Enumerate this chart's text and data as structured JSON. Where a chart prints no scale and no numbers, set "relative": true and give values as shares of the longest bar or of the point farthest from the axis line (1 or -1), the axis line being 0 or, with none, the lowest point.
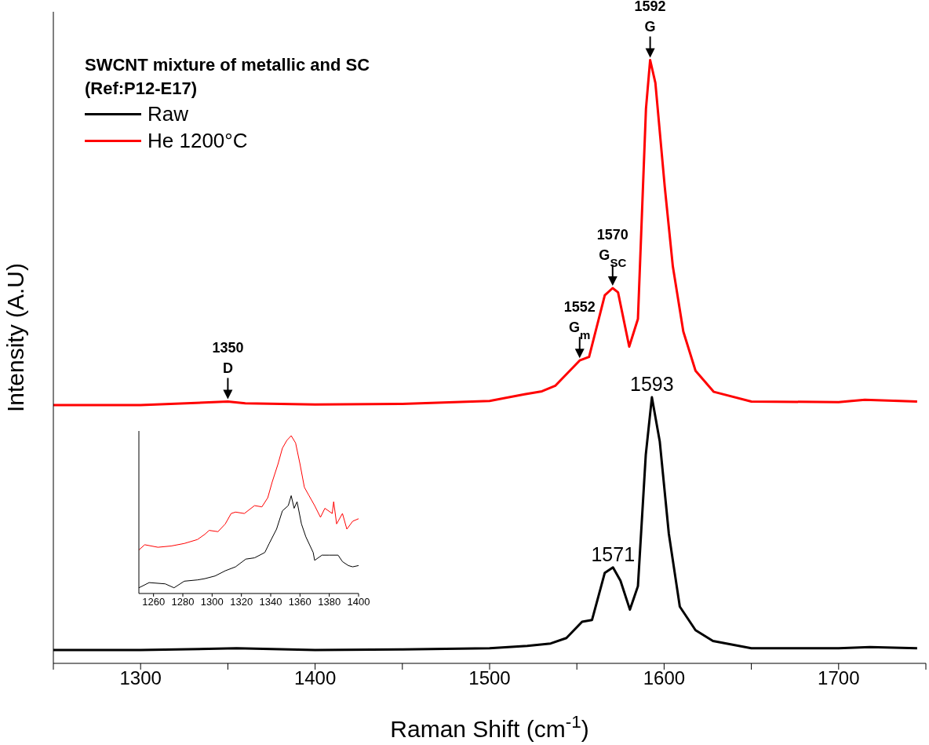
{
  "chart_data": [
    {
      "type": "line",
      "xlabel": "Raman Shift (cm$^{-1}$)",
      "ylabel": "Intensity (A.U)",
      "legend_title": "SWCNT mixture of metallic and SC (Ref:P12-E17)",
      "legend": "top left",
      "relative": true,
      "xlim": [
        1250,
        1750
      ],
      "xticks": [
        {
          "value": 1250,
          "label": null
        },
        1300,
        {
          "value": 1350,
          "label": null
        },
        1400,
        {
          "value": 1450,
          "label": null
        },
        1500,
        {
          "value": 1550,
          "label": null
        },
        1600,
        {
          "value": 1650,
          "label": null
        },
        1700,
        {
          "value": 1750,
          "label": null
        }
      ],
      "series": [
        {
          "name": "Raw",
          "color": "#000000",
          "x": [
            1250,
            1300,
            1355,
            1400,
            1450,
            1500,
            1521.6,
            1535,
            1544,
            1553,
            1558.7,
            1566,
            1570.7,
            1575,
            1580.4,
            1585,
            1589.5,
            1593,
            1597.5,
            1602.7,
            1609,
            1618,
            1628,
            1650,
            1700,
            1718,
            1745
          ],
          "values": [
            0.022,
            0.022,
            0.025,
            0.022,
            0.023,
            0.025,
            0.029,
            0.033,
            0.042,
            0.069,
            0.072,
            0.15,
            0.159,
            0.137,
            0.089,
            0.128,
            0.346,
            0.441,
            0.368,
            0.215,
            0.094,
            0.055,
            0.037,
            0.025,
            0.025,
            0.027,
            0.025
          ]
        },
        {
          "name": "He 1200°C",
          "color": "#ff0000",
          "x": [
            1250,
            1300,
            1350,
            1360,
            1400,
            1450,
            1500,
            1520,
            1530,
            1537.6,
            1551.6,
            1557,
            1566,
            1570.5,
            1573.6,
            1580,
            1585,
            1589.6,
            1592,
            1595,
            1600.4,
            1605,
            1611,
            1618,
            1628.5,
            1650,
            1700,
            1715,
            1745
          ],
          "values": [
            0.428,
            0.428,
            0.434,
            0.431,
            0.429,
            0.43,
            0.435,
            0.446,
            0.451,
            0.46,
            0.502,
            0.508,
            0.61,
            0.622,
            0.615,
            0.525,
            0.571,
            0.919,
            1,
            0.962,
            0.789,
            0.658,
            0.55,
            0.485,
            0.45,
            0.434,
            0.433,
            0.437,
            0.434
          ]
        }
      ],
      "annotations": [
        {
          "text": "1592\nG",
          "x": 1592,
          "y": 1
        },
        {
          "text": "1570\nG$_{SC}$",
          "x": 1570.5,
          "y": 0.622
        },
        {
          "text": "1552\nG$_{m}$",
          "x": 1551.6,
          "y": 0.502
        },
        {
          "text": "1350\nD",
          "x": 1350,
          "y": 0.434
        },
        {
          "text": "1593",
          "x": 1593,
          "y": 0.441
        },
        {
          "text": "1571",
          "x": 1570.7,
          "y": 0.159
        }
      ]
    },
    {
      "type": "line",
      "relative": true,
      "xlim": [
        1250,
        1400
      ],
      "xticks": [
        1260,
        1280,
        1300,
        1320,
        1340,
        1360,
        1380,
        1400
      ],
      "series": [
        {
          "color": "#ff0000",
          "x": [
            1250,
            1254,
            1263,
            1272,
            1281,
            1290,
            1295,
            1298,
            1304,
            1309,
            1313,
            1316,
            1322,
            1329,
            1334,
            1338,
            1341,
            1345,
            1348,
            1351,
            1354,
            1357,
            1360,
            1363,
            1366,
            1370,
            1374,
            1377,
            1382,
            1383,
            1385,
            1389,
            1392,
            1396,
            1400
          ],
          "values": [
            0.276,
            0.309,
            0.293,
            0.301,
            0.317,
            0.342,
            0.375,
            0.4,
            0.392,
            0.441,
            0.507,
            0.516,
            0.507,
            0.557,
            0.549,
            0.607,
            0.706,
            0.821,
            0.921,
            0.97,
            1,
            0.954,
            0.821,
            0.673,
            0.623,
            0.557,
            0.483,
            0.54,
            0.507,
            0.582,
            0.441,
            0.507,
            0.408,
            0.458,
            0.474
          ]
        },
        {
          "color": "#000000",
          "x": [
            1250,
            1257,
            1268,
            1274,
            1281,
            1290,
            1295,
            1302,
            1309,
            1316,
            1323,
            1329,
            1336,
            1339,
            1344,
            1348,
            1352,
            1354,
            1356,
            1358,
            1361,
            1364,
            1369,
            1370,
            1375,
            1380,
            1386,
            1389,
            1393,
            1396,
            1400
          ],
          "values": [
            0.036,
            0.069,
            0.061,
            0.036,
            0.078,
            0.086,
            0.094,
            0.111,
            0.144,
            0.169,
            0.218,
            0.226,
            0.26,
            0.317,
            0.408,
            0.524,
            0.557,
            0.62,
            0.54,
            0.582,
            0.441,
            0.359,
            0.26,
            0.21,
            0.243,
            0.243,
            0.243,
            0.202,
            0.177,
            0.169,
            0.177
          ]
        }
      ]
    }
  ]
}
